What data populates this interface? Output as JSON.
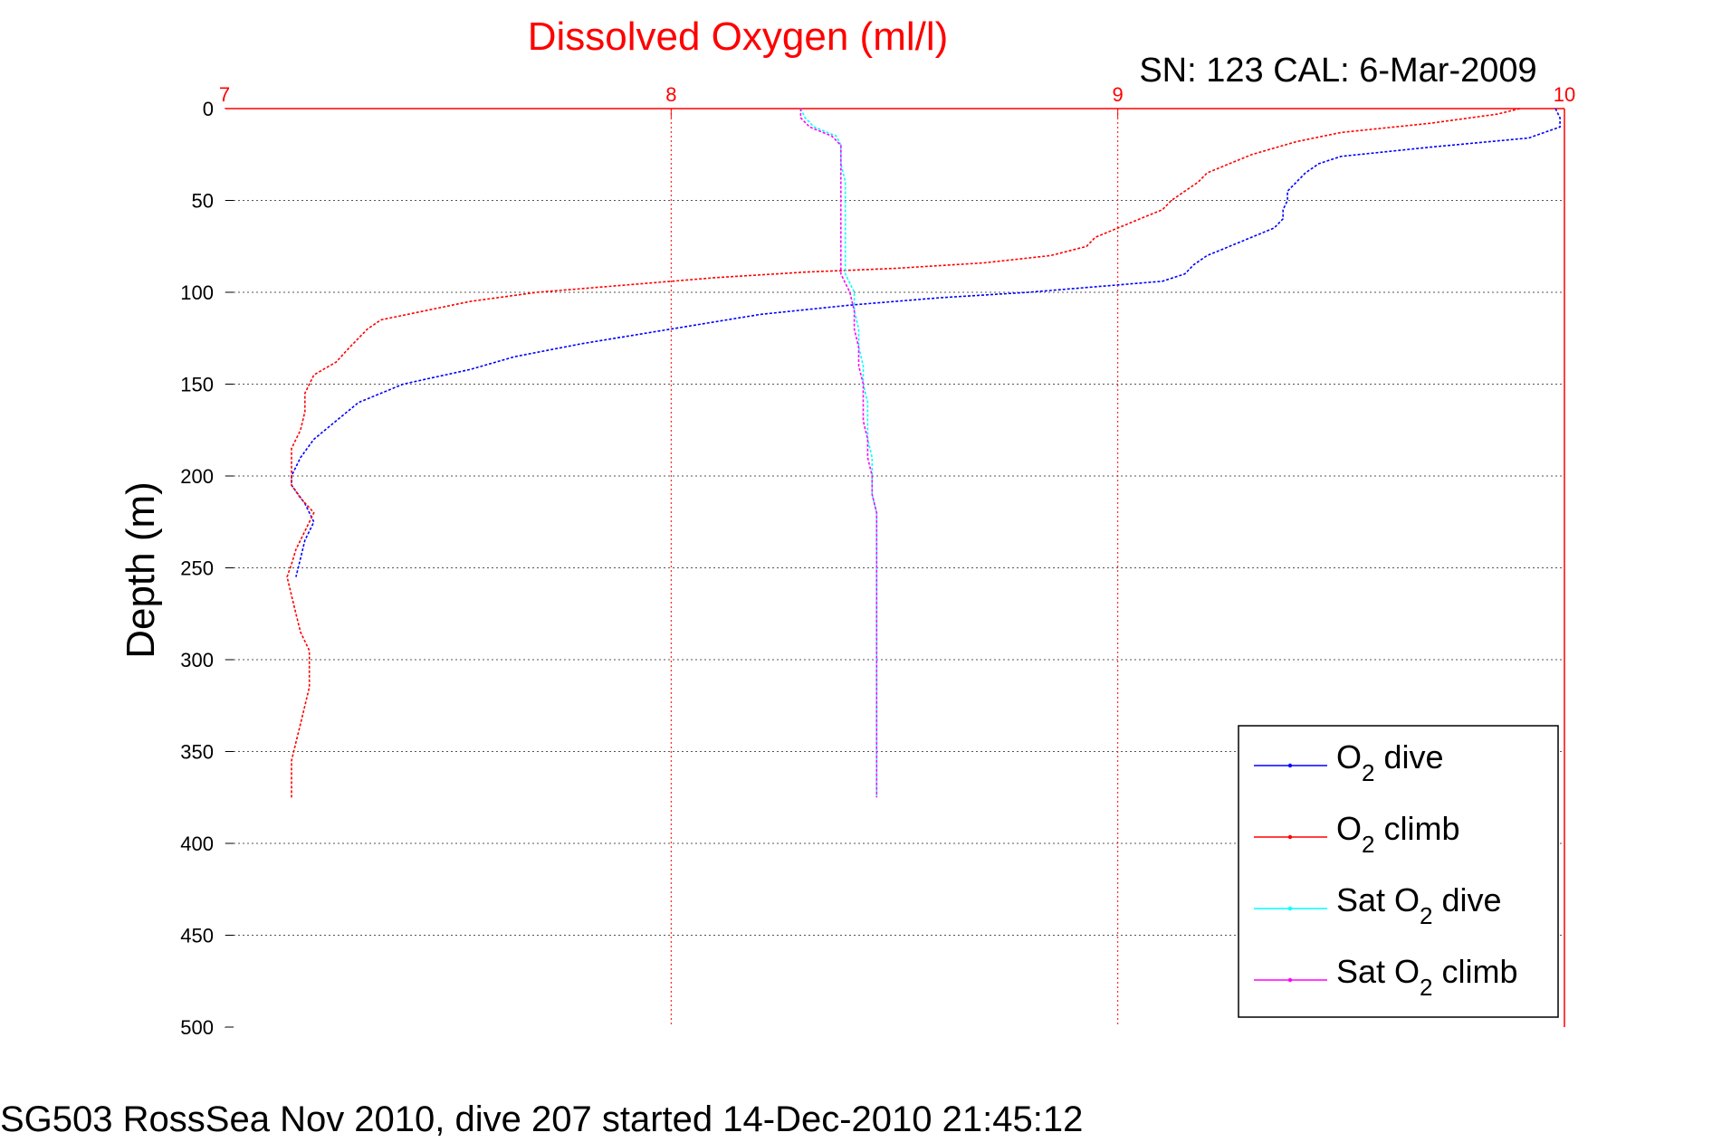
{
  "chart_data": {
    "type": "line",
    "title": "Dissolved Oxygen (ml/l)",
    "subtitle": "SN: 123  CAL: 6-Mar-2009",
    "xlabel": "",
    "ylabel": "Depth (m)",
    "xlim": [
      7,
      10
    ],
    "ylim": [
      0,
      500
    ],
    "y_inverted": true,
    "x_axis_position": "top",
    "x_ticks": [
      "7",
      "8",
      "9",
      "10"
    ],
    "y_ticks": [
      "0",
      "50",
      "100",
      "150",
      "200",
      "250",
      "300",
      "350",
      "400",
      "450",
      "500"
    ],
    "grid": true,
    "legend_position": "bottom-right",
    "series": [
      {
        "name": "O2 dive",
        "legend": {
          "pre": "O",
          "sub": "2",
          "post": " dive"
        },
        "color": "#0000ff",
        "points": [
          [
            9.98,
            0
          ],
          [
            9.99,
            5
          ],
          [
            9.99,
            10
          ],
          [
            9.92,
            16
          ],
          [
            9.7,
            21
          ],
          [
            9.5,
            26
          ],
          [
            9.45,
            30
          ],
          [
            9.42,
            35
          ],
          [
            9.4,
            40
          ],
          [
            9.38,
            45
          ],
          [
            9.38,
            50
          ],
          [
            9.37,
            55
          ],
          [
            9.37,
            60
          ],
          [
            9.35,
            65
          ],
          [
            9.3,
            70
          ],
          [
            9.25,
            75
          ],
          [
            9.2,
            80
          ],
          [
            9.17,
            85
          ],
          [
            9.15,
            90
          ],
          [
            9.1,
            94
          ],
          [
            8.95,
            97
          ],
          [
            8.8,
            100
          ],
          [
            8.6,
            103
          ],
          [
            8.4,
            107
          ],
          [
            8.2,
            112
          ],
          [
            8.0,
            120
          ],
          [
            7.8,
            128
          ],
          [
            7.65,
            135
          ],
          [
            7.55,
            142
          ],
          [
            7.4,
            150
          ],
          [
            7.3,
            160
          ],
          [
            7.25,
            170
          ],
          [
            7.2,
            180
          ],
          [
            7.17,
            190
          ],
          [
            7.15,
            200
          ],
          [
            7.15,
            205
          ],
          [
            7.18,
            215
          ],
          [
            7.2,
            225
          ],
          [
            7.18,
            235
          ],
          [
            7.17,
            245
          ],
          [
            7.16,
            255
          ]
        ]
      },
      {
        "name": "O2 climb",
        "legend": {
          "pre": "O",
          "sub": "2",
          "post": " climb"
        },
        "color": "#ff0000",
        "points": [
          [
            9.9,
            0
          ],
          [
            9.85,
            3
          ],
          [
            9.7,
            8
          ],
          [
            9.5,
            13
          ],
          [
            9.4,
            18
          ],
          [
            9.3,
            25
          ],
          [
            9.25,
            30
          ],
          [
            9.2,
            35
          ],
          [
            9.18,
            40
          ],
          [
            9.15,
            45
          ],
          [
            9.12,
            50
          ],
          [
            9.1,
            55
          ],
          [
            9.05,
            60
          ],
          [
            9.0,
            65
          ],
          [
            8.95,
            70
          ],
          [
            8.93,
            75
          ],
          [
            8.85,
            80
          ],
          [
            8.7,
            84
          ],
          [
            8.5,
            87
          ],
          [
            8.3,
            89
          ],
          [
            8.1,
            92
          ],
          [
            7.9,
            96
          ],
          [
            7.7,
            100
          ],
          [
            7.55,
            105
          ],
          [
            7.45,
            110
          ],
          [
            7.35,
            115
          ],
          [
            7.32,
            120
          ],
          [
            7.3,
            125
          ],
          [
            7.28,
            130
          ],
          [
            7.25,
            138
          ],
          [
            7.2,
            145
          ],
          [
            7.18,
            155
          ],
          [
            7.18,
            165
          ],
          [
            7.17,
            175
          ],
          [
            7.15,
            185
          ],
          [
            7.15,
            195
          ],
          [
            7.15,
            205
          ],
          [
            7.17,
            212
          ],
          [
            7.2,
            220
          ],
          [
            7.18,
            230
          ],
          [
            7.16,
            240
          ],
          [
            7.15,
            248
          ],
          [
            7.14,
            255
          ],
          [
            7.15,
            265
          ],
          [
            7.16,
            275
          ],
          [
            7.17,
            285
          ],
          [
            7.19,
            295
          ],
          [
            7.19,
            305
          ],
          [
            7.19,
            315
          ],
          [
            7.18,
            325
          ],
          [
            7.17,
            335
          ],
          [
            7.16,
            345
          ],
          [
            7.15,
            355
          ],
          [
            7.15,
            365
          ],
          [
            7.15,
            375
          ]
        ]
      },
      {
        "name": "Sat O2 dive",
        "legend": {
          "pre": "Sat O",
          "sub": "2",
          "post": " dive"
        },
        "color": "#00ffff",
        "points": [
          [
            8.29,
            0
          ],
          [
            8.3,
            5
          ],
          [
            8.32,
            10
          ],
          [
            8.37,
            15
          ],
          [
            8.38,
            20
          ],
          [
            8.38,
            30
          ],
          [
            8.39,
            40
          ],
          [
            8.39,
            50
          ],
          [
            8.39,
            60
          ],
          [
            8.39,
            70
          ],
          [
            8.39,
            80
          ],
          [
            8.39,
            90
          ],
          [
            8.4,
            95
          ],
          [
            8.41,
            100
          ],
          [
            8.41,
            110
          ],
          [
            8.42,
            120
          ],
          [
            8.42,
            130
          ],
          [
            8.43,
            140
          ],
          [
            8.43,
            150
          ],
          [
            8.44,
            160
          ],
          [
            8.44,
            170
          ],
          [
            8.44,
            180
          ],
          [
            8.45,
            190
          ],
          [
            8.45,
            200
          ],
          [
            8.45,
            210
          ],
          [
            8.46,
            220
          ],
          [
            8.46,
            240
          ],
          [
            8.46,
            260
          ],
          [
            8.46,
            280
          ],
          [
            8.46,
            300
          ],
          [
            8.46,
            320
          ],
          [
            8.46,
            340
          ],
          [
            8.46,
            360
          ],
          [
            8.46,
            375
          ]
        ]
      },
      {
        "name": "Sat O2 climb",
        "legend": {
          "pre": "Sat O",
          "sub": "2",
          "post": " climb"
        },
        "color": "#ff00ff",
        "points": [
          [
            8.29,
            0
          ],
          [
            8.29,
            5
          ],
          [
            8.31,
            10
          ],
          [
            8.36,
            15
          ],
          [
            8.38,
            20
          ],
          [
            8.38,
            30
          ],
          [
            8.38,
            40
          ],
          [
            8.38,
            50
          ],
          [
            8.38,
            60
          ],
          [
            8.38,
            70
          ],
          [
            8.38,
            80
          ],
          [
            8.38,
            90
          ],
          [
            8.39,
            95
          ],
          [
            8.4,
            100
          ],
          [
            8.41,
            110
          ],
          [
            8.41,
            120
          ],
          [
            8.42,
            130
          ],
          [
            8.42,
            140
          ],
          [
            8.43,
            150
          ],
          [
            8.43,
            160
          ],
          [
            8.43,
            170
          ],
          [
            8.44,
            180
          ],
          [
            8.44,
            190
          ],
          [
            8.45,
            200
          ],
          [
            8.45,
            210
          ],
          [
            8.46,
            220
          ],
          [
            8.46,
            240
          ],
          [
            8.46,
            260
          ],
          [
            8.46,
            280
          ],
          [
            8.46,
            300
          ],
          [
            8.46,
            320
          ],
          [
            8.46,
            340
          ],
          [
            8.46,
            360
          ],
          [
            8.46,
            375
          ]
        ]
      }
    ]
  },
  "footer": "SG503 RossSea Nov 2010, dive 207 started 14-Dec-2010 21:45:12"
}
